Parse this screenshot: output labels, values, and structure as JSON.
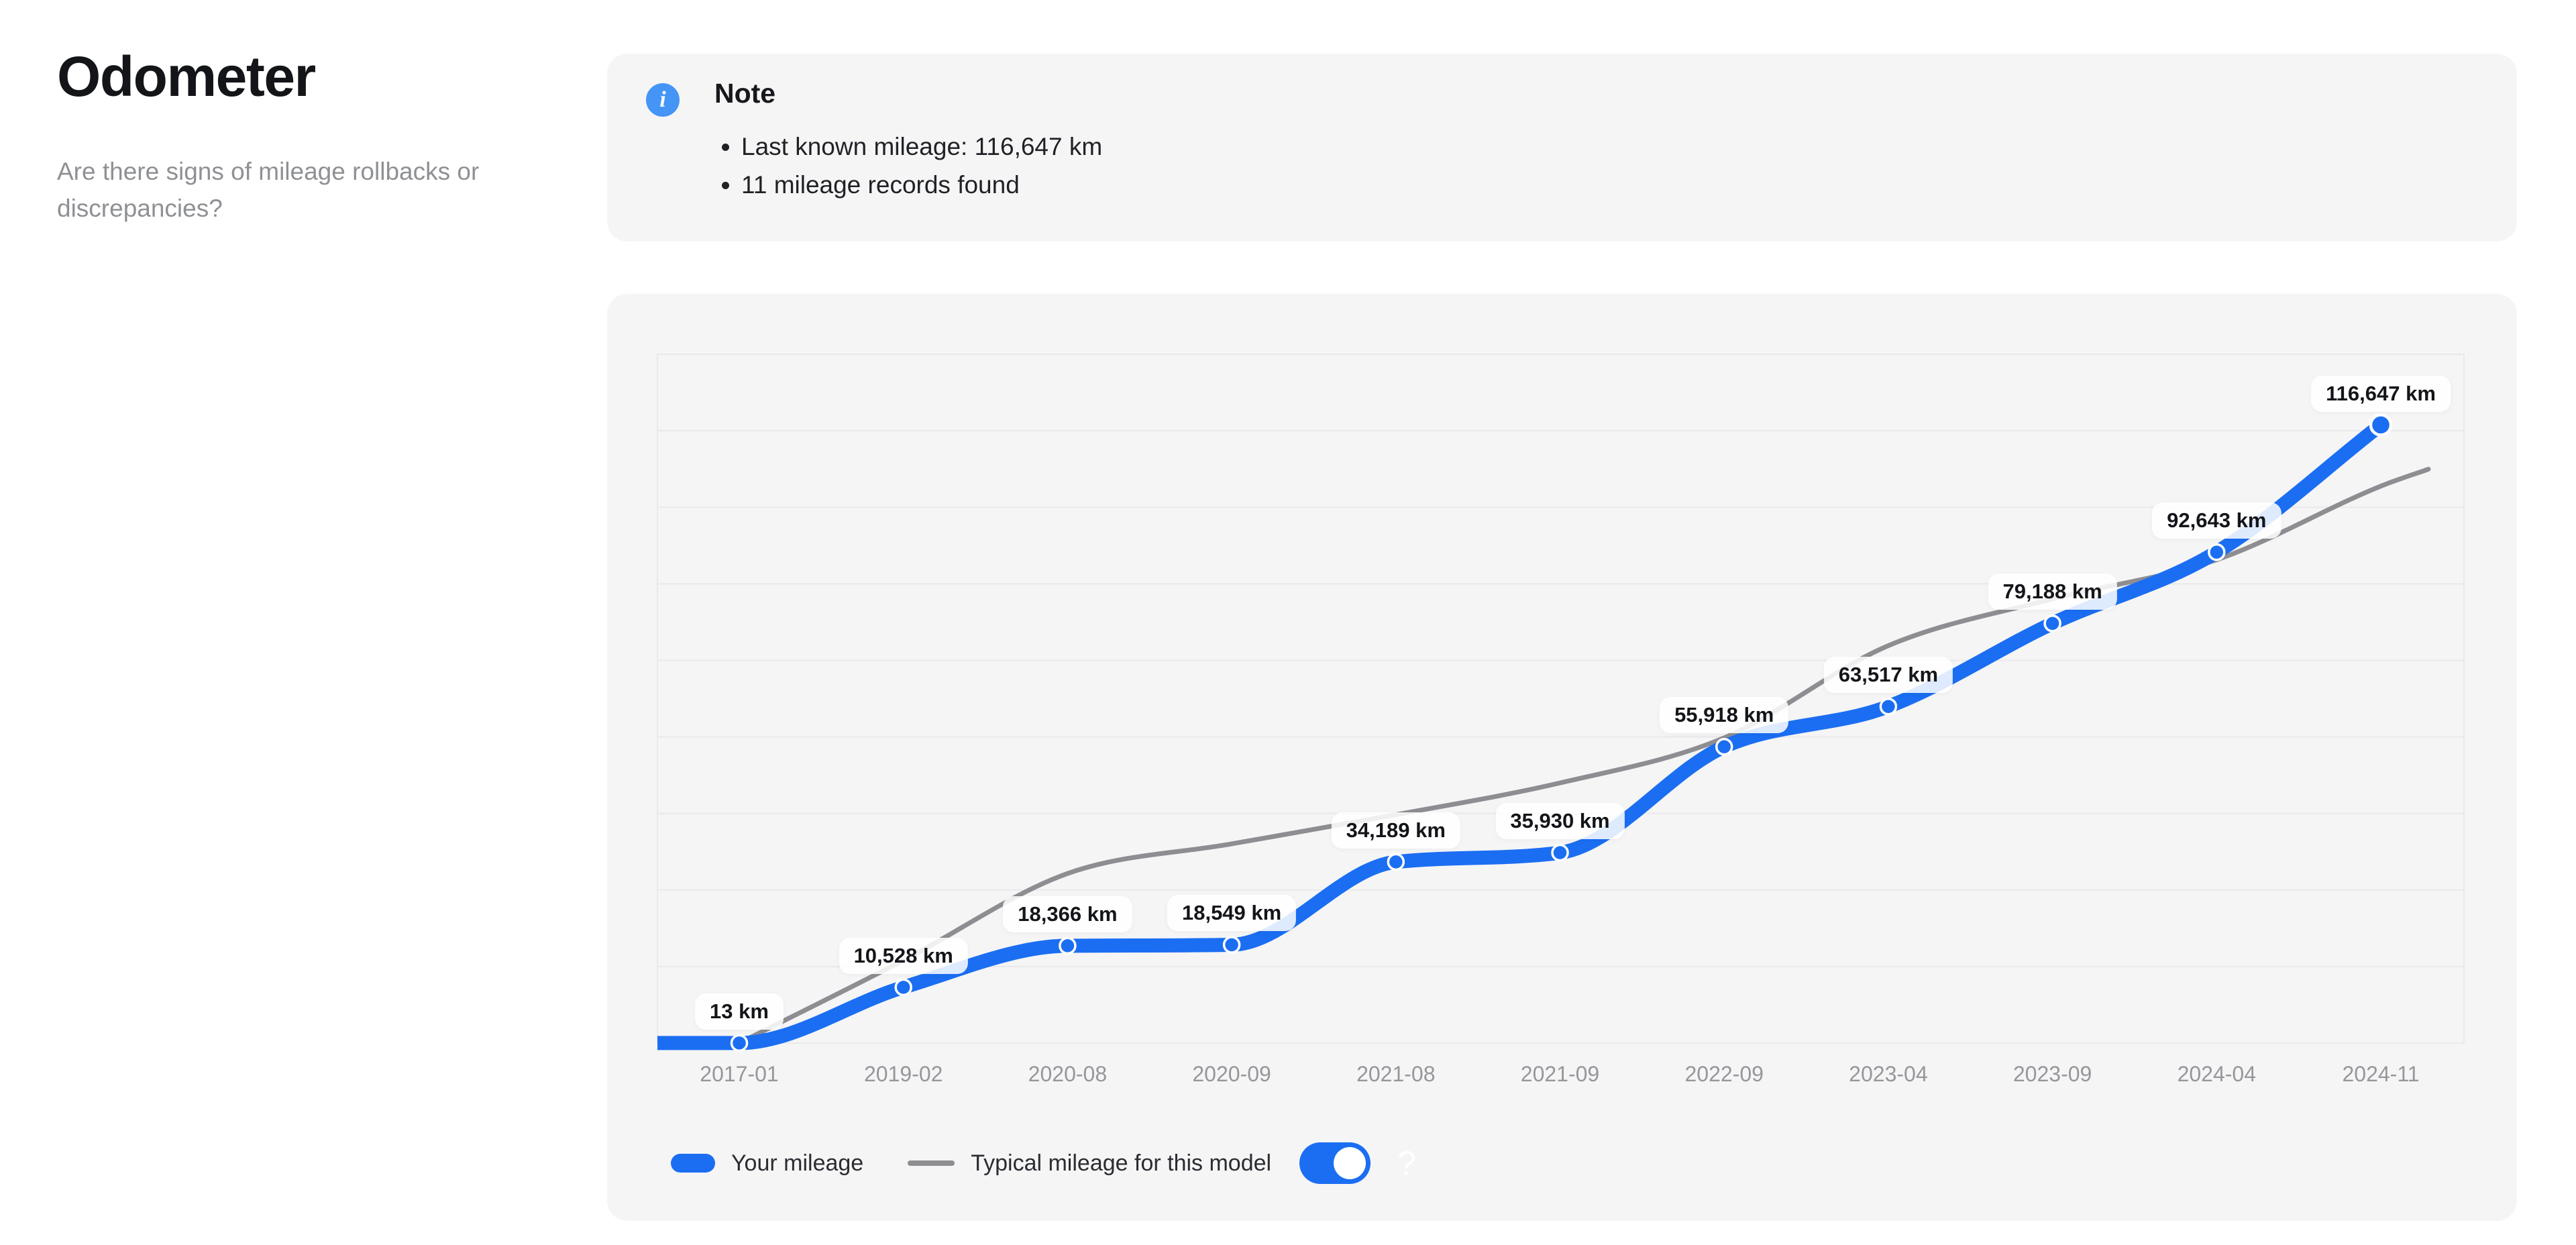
{
  "header": {
    "title": "Odometer",
    "subtitle": "Are there signs of mileage rollbacks or discrepancies?"
  },
  "note": {
    "title": "Note",
    "items": [
      "Last known mileage: 116,647 km",
      "11 mileage records found"
    ]
  },
  "legend": {
    "your_mileage_label": "Your mileage",
    "typical_label": "Typical mileage for this model",
    "toggle_state": "on",
    "help_glyph": "?"
  },
  "colors": {
    "accent_blue": "#1b6ef2",
    "typical_gray": "#8d8d92",
    "info_icon_blue": "#4495f6",
    "card_background": "#f5f5f6",
    "gridline": "#e9e9ec",
    "tick_text": "#96969b"
  },
  "chart_data": {
    "type": "line",
    "title": "",
    "xlabel": "",
    "ylabel": "",
    "categories": [
      "2017-01",
      "2019-02",
      "2020-08",
      "2020-09",
      "2021-08",
      "2021-09",
      "2022-09",
      "2023-04",
      "2023-09",
      "2024-04",
      "2024-11"
    ],
    "series": [
      {
        "name": "Your mileage",
        "color": "#1b6ef2",
        "values": [
          13,
          10528,
          18366,
          18549,
          34189,
          35930,
          55918,
          63517,
          79188,
          92643,
          116647
        ],
        "point_labels": [
          "13 km",
          "10,528 km",
          "18,366 km",
          "18,549 km",
          "34,189 km",
          "35,930 km",
          "55,918 km",
          "63,517 km",
          "79,188 km",
          "92,643 km",
          "116,647 km"
        ]
      },
      {
        "name": "Typical mileage for this model",
        "color": "#8d8d92",
        "values": [
          0,
          15600,
          32000,
          37600,
          43100,
          49100,
          57600,
          75000,
          83800,
          91200,
          105100
        ],
        "extension": {
          "offset_categories": 0.29,
          "value": 108300
        }
      }
    ],
    "ylim": [
      0,
      130000
    ],
    "grid": "horizontal",
    "gridline_count": 10,
    "legend_position": "bottom"
  }
}
